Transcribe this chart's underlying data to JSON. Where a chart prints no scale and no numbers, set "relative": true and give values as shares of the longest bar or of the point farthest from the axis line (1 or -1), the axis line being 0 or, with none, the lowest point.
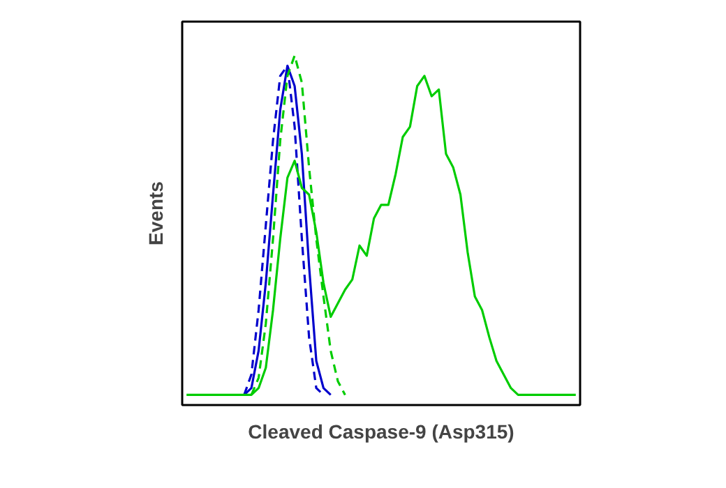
{
  "chart_data": {
    "type": "line",
    "relative": true,
    "xlabel": "Cleaved Caspase-9 (Asp315)",
    "ylabel": "Events",
    "categories": [
      null,
      null,
      null,
      null,
      null,
      null,
      null,
      null,
      null,
      null,
      null,
      null,
      null,
      null,
      null,
      null,
      null,
      null,
      null,
      null,
      null,
      null,
      null,
      null,
      null,
      null,
      null,
      null,
      null,
      null,
      null,
      null,
      null,
      null,
      null,
      null,
      null,
      null,
      null,
      null,
      null,
      null,
      null,
      null,
      null,
      null,
      null,
      null,
      null,
      null,
      null,
      null,
      null,
      null,
      null
    ],
    "series": [
      {
        "color": "#0000cc",
        "line_style": "dashed",
        "values": [
          null,
          null,
          null,
          null,
          null,
          null,
          null,
          null,
          0,
          0.06,
          0.25,
          0.5,
          0.75,
          0.94,
          0.97,
          0.79,
          0.46,
          0.17,
          0.02,
          0,
          null,
          null,
          null,
          null,
          null,
          null,
          null,
          null,
          null,
          null,
          null,
          null,
          null,
          null,
          null,
          null,
          null,
          null,
          null,
          null,
          null,
          null,
          null,
          null,
          null,
          null,
          null,
          null,
          null,
          null,
          null,
          null,
          null,
          null,
          null
        ]
      },
      {
        "color": "#0000cc",
        "line_style": "solid",
        "values": [
          null,
          null,
          null,
          null,
          null,
          null,
          null,
          null,
          0,
          0.02,
          0.13,
          0.33,
          0.59,
          0.84,
          0.97,
          0.91,
          0.71,
          0.38,
          0.1,
          0.02,
          0,
          null,
          null,
          null,
          null,
          null,
          null,
          null,
          null,
          null,
          null,
          null,
          null,
          null,
          null,
          null,
          null,
          null,
          null,
          null,
          null,
          null,
          null,
          null,
          null,
          null,
          null,
          null,
          null,
          null,
          null,
          null,
          null,
          null,
          null
        ]
      },
      {
        "color": "#00cc00",
        "line_style": "dashed",
        "values": [
          null,
          null,
          null,
          null,
          null,
          null,
          null,
          null,
          null,
          0,
          0.05,
          0.21,
          0.46,
          0.75,
          0.94,
          1.0,
          0.92,
          0.67,
          0.46,
          0.29,
          0.13,
          0.04,
          0,
          null,
          null,
          null,
          null,
          null,
          null,
          null,
          null,
          null,
          null,
          null,
          null,
          null,
          null,
          null,
          null,
          null,
          null,
          null,
          null,
          null,
          null,
          null,
          null,
          null,
          null,
          null,
          null,
          null,
          null,
          null,
          null
        ]
      },
      {
        "color": "#00cc00",
        "line_style": "solid",
        "values": [
          0,
          0,
          0,
          0,
          0,
          0,
          0,
          0,
          0,
          0,
          0.02,
          0.08,
          0.25,
          0.46,
          0.64,
          0.69,
          0.61,
          0.59,
          0.48,
          0.33,
          0.23,
          0.27,
          0.31,
          0.34,
          0.44,
          0.41,
          0.52,
          0.56,
          0.56,
          0.65,
          0.76,
          0.79,
          0.91,
          0.94,
          0.88,
          0.9,
          0.71,
          0.67,
          0.59,
          0.42,
          0.29,
          0.25,
          0.17,
          0.1,
          0.06,
          0.02,
          0,
          0,
          0,
          0,
          0,
          0,
          0,
          0,
          0
        ]
      }
    ]
  }
}
